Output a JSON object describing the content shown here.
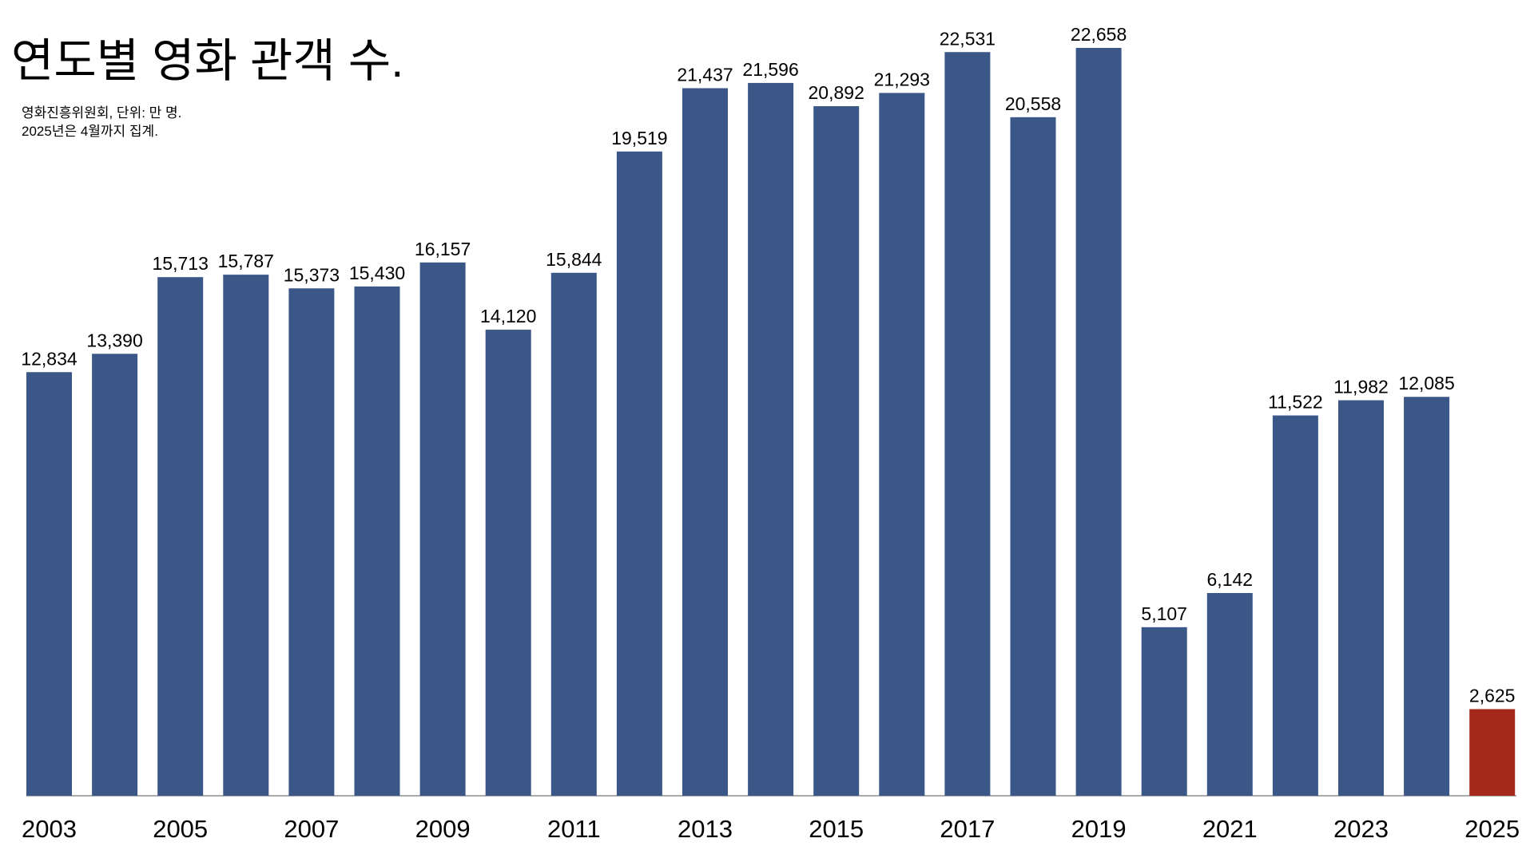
{
  "chart_data": {
    "type": "bar",
    "title": "연도별 영화 관객 수.",
    "subtitle": [
      "영화진흥위원회, 단위: 만 명.",
      "2025년은 4월까지 집계."
    ],
    "categories": [
      "2003",
      null,
      "2005",
      null,
      "2007",
      null,
      "2009",
      null,
      "2011",
      null,
      "2013",
      null,
      "2015",
      null,
      "2017",
      null,
      "2019",
      null,
      "2021",
      null,
      "2023",
      null,
      "2025"
    ],
    "values": [
      12834,
      13390,
      15713,
      15787,
      15373,
      15430,
      16157,
      14120,
      15844,
      19519,
      21437,
      21596,
      20892,
      21293,
      22531,
      20558,
      22658,
      5107,
      6142,
      11522,
      11982,
      12085,
      2625
    ],
    "value_labels": [
      "12,834",
      "13,390",
      "15,713",
      "15,787",
      "15,373",
      "15,430",
      "16,157",
      "14,120",
      "15,844",
      "19,519",
      "21,437",
      "21,596",
      "20,892",
      "21,293",
      "22,531",
      "20,558",
      "22,658",
      "5,107",
      "6,142",
      "11,522",
      "11,982",
      "12,085",
      "2,625"
    ],
    "colors": [
      "#3a5788",
      "#3a5788",
      "#3a5788",
      "#3a5788",
      "#3a5788",
      "#3a5788",
      "#3a5788",
      "#3a5788",
      "#3a5788",
      "#3a5788",
      "#3a5788",
      "#3a5788",
      "#3a5788",
      "#3a5788",
      "#3a5788",
      "#3a5788",
      "#3a5788",
      "#3a5788",
      "#3a5788",
      "#3a5788",
      "#3a5788",
      "#3a5788",
      "#a5291b"
    ]
  }
}
